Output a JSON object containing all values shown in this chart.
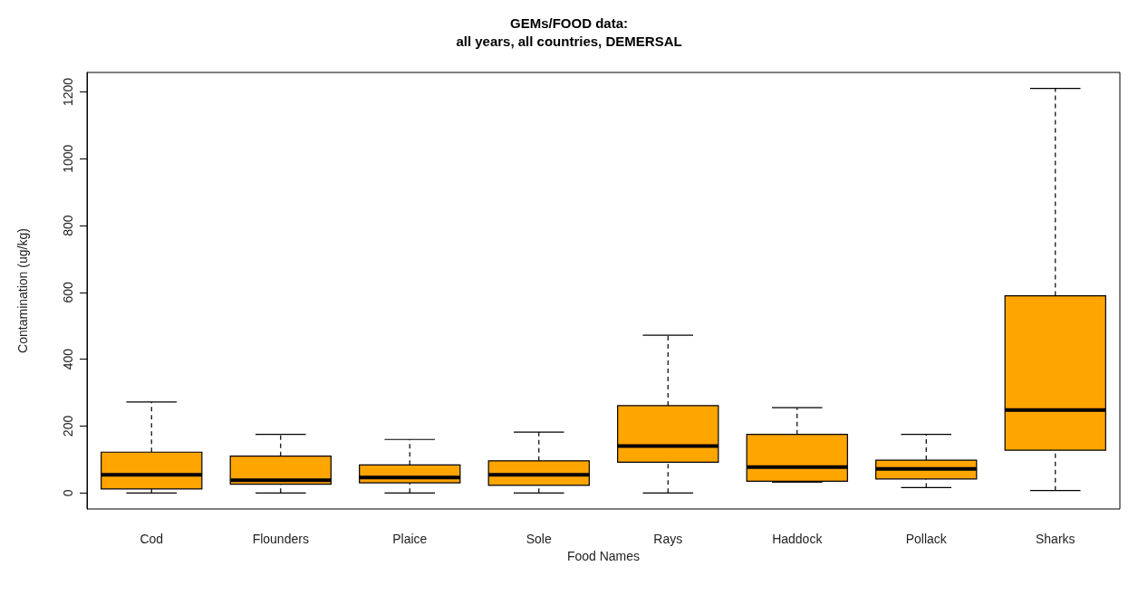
{
  "chart_data": {
    "type": "box",
    "title": "GEMs/FOOD data:\nall years, all countries, DEMERSAL",
    "xlabel": "Food Names",
    "ylabel": "Contamination (ug/kg)",
    "categories": [
      "Cod",
      "Flounders",
      "Plaice",
      "Sole",
      "Rays",
      "Haddock",
      "Pollack",
      "Sharks"
    ],
    "color": "#ffa500",
    "boxes": [
      {
        "low": 0,
        "q1": 12,
        "median": 54,
        "q3": 122,
        "high": 272
      },
      {
        "low": 0,
        "q1": 26,
        "median": 38,
        "q3": 110,
        "high": 175
      },
      {
        "low": 0,
        "q1": 30,
        "median": 46,
        "q3": 84,
        "high": 160
      },
      {
        "low": 0,
        "q1": 23,
        "median": 54,
        "q3": 96,
        "high": 182
      },
      {
        "low": 0,
        "q1": 92,
        "median": 140,
        "q3": 261,
        "high": 472
      },
      {
        "low": 32,
        "q1": 35,
        "median": 77,
        "q3": 175,
        "high": 255
      },
      {
        "low": 16,
        "q1": 42,
        "median": 72,
        "q3": 98,
        "high": 175
      },
      {
        "low": 7,
        "q1": 128,
        "median": 248,
        "q3": 590,
        "high": 1210
      }
    ],
    "ylim": [
      -48,
      1258
    ],
    "yticks": [
      0,
      200,
      400,
      600,
      800,
      1000,
      1200
    ]
  }
}
